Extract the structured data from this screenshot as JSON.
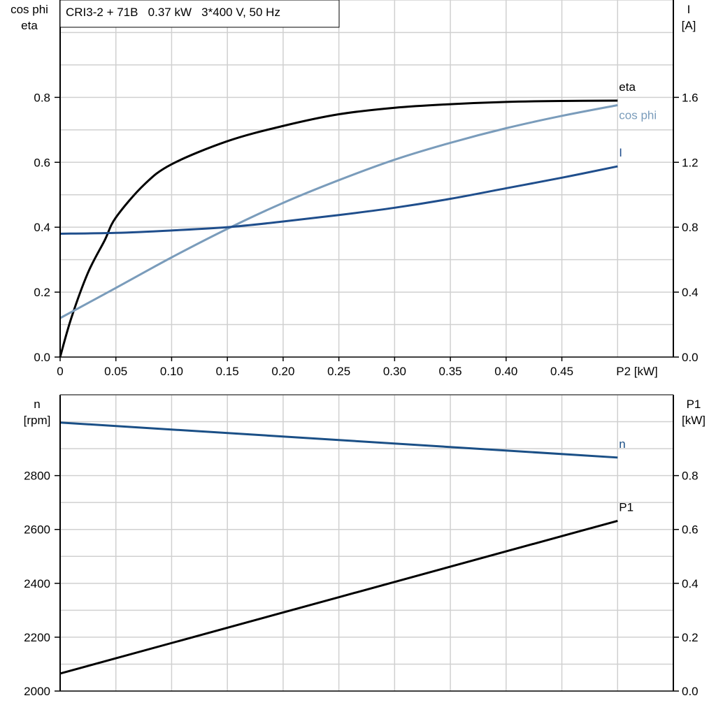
{
  "title": "CRI3-2 + 71B   0.37 kW   3*400 V, 50 Hz",
  "chart_data": [
    {
      "type": "line",
      "x_label": "P2 [kW]",
      "x_ticks": [
        "0",
        "0.05",
        "0.10",
        "0.15",
        "0.20",
        "0.25",
        "0.30",
        "0.35",
        "0.40",
        "0.45"
      ],
      "xlim": [
        0,
        0.55
      ],
      "y_label_left": [
        "cos phi",
        "eta"
      ],
      "y_ticks_left": [
        "0.0",
        "0.2",
        "0.4",
        "0.6",
        "0.8"
      ],
      "ylim_left": [
        0,
        1.1
      ],
      "y_label_right": [
        "I",
        "[A]"
      ],
      "y_ticks_right": [
        "0.0",
        "0.4",
        "0.8",
        "1.2",
        "1.6"
      ],
      "ylim_right": [
        0,
        2.2
      ],
      "grid": true,
      "series": [
        {
          "name": "eta",
          "axis": "left",
          "color": "#000000",
          "x": [
            0,
            0.01,
            0.025,
            0.04,
            0.05,
            0.075,
            0.1,
            0.15,
            0.2,
            0.25,
            0.3,
            0.35,
            0.4,
            0.45,
            0.5
          ],
          "y": [
            0,
            0.12,
            0.26,
            0.36,
            0.43,
            0.53,
            0.594,
            0.665,
            0.712,
            0.748,
            0.768,
            0.779,
            0.786,
            0.789,
            0.79
          ]
        },
        {
          "name": "cos phi",
          "axis": "left",
          "color": "#7a9cbb",
          "x": [
            0,
            0.05,
            0.1,
            0.15,
            0.2,
            0.25,
            0.3,
            0.35,
            0.4,
            0.45,
            0.5
          ],
          "y": [
            0.12,
            0.213,
            0.307,
            0.395,
            0.475,
            0.545,
            0.608,
            0.66,
            0.705,
            0.743,
            0.776
          ]
        },
        {
          "name": "I",
          "axis": "right",
          "color": "#1f4e8c",
          "x": [
            0,
            0.05,
            0.1,
            0.15,
            0.2,
            0.25,
            0.3,
            0.35,
            0.4,
            0.45,
            0.5
          ],
          "y": [
            0.76,
            0.765,
            0.78,
            0.8,
            0.835,
            0.875,
            0.92,
            0.975,
            1.04,
            1.105,
            1.175
          ]
        }
      ]
    },
    {
      "type": "line",
      "xlim": [
        0,
        0.55
      ],
      "y_label_left": [
        "n",
        "[rpm]"
      ],
      "y_ticks_left": [
        "2000",
        "2200",
        "2400",
        "2600",
        "2800"
      ],
      "ylim_left": [
        2000,
        3100
      ],
      "y_label_right": [
        "P1",
        "[kW]"
      ],
      "y_ticks_right": [
        "0.0",
        "0.2",
        "0.4",
        "0.6",
        "0.8"
      ],
      "ylim_right": [
        0,
        1.1
      ],
      "grid": true,
      "series": [
        {
          "name": "n",
          "axis": "left",
          "color": "#1a4f86",
          "x": [
            0,
            0.5
          ],
          "y": [
            2997,
            2867
          ]
        },
        {
          "name": "P1",
          "axis": "right",
          "color": "#000000",
          "x": [
            0,
            0.5
          ],
          "y": [
            0.065,
            0.632
          ]
        }
      ]
    }
  ]
}
